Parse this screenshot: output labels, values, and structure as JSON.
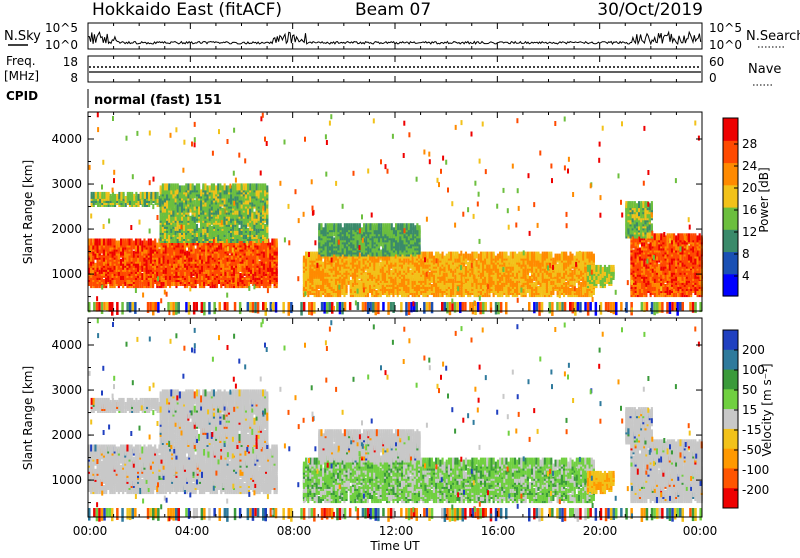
{
  "header": {
    "station": "Hokkaido East (fitACF)",
    "beam": "Beam 07",
    "date": "30/Oct/2019"
  },
  "panels": {
    "nsky": {
      "left_label": "N.Sky",
      "left_ticks": [
        "10^5",
        "10^0"
      ],
      "right_ticks": [
        "10^5",
        "10^0"
      ],
      "right_label": "N.Search"
    },
    "freq": {
      "left_label_1": "Freq.",
      "left_label_2": "[MHz]",
      "left_ticks": [
        "18",
        "8"
      ],
      "right_ticks": [
        "60",
        "0"
      ],
      "right_label": "Nave"
    },
    "cpid": {
      "label": "CPID",
      "value": "normal (fast) 151"
    },
    "power": {
      "ylabel": "Slant Range [km]",
      "yticks": [
        "4000",
        "3000",
        "2000",
        "1000"
      ],
      "colorbar_label": "Power [dB]",
      "colorbar_ticks": [
        "28",
        "24",
        "20",
        "16",
        "12",
        "8",
        "4"
      ]
    },
    "velocity": {
      "ylabel": "Slant Range [km]",
      "yticks": [
        "4000",
        "3000",
        "2000",
        "1000"
      ],
      "colorbar_label": "Velocity [m s⁻¹]",
      "colorbar_ticks": [
        "200",
        "100",
        "50",
        "15",
        "-15",
        "-50",
        "-100",
        "-200"
      ]
    }
  },
  "xaxis": {
    "label": "Time UT",
    "ticks": [
      "00:00",
      "04:00",
      "08:00",
      "12:00",
      "16:00",
      "20:00",
      "00:00"
    ]
  },
  "chart_data": {
    "type": "heatmap",
    "x_range_hours": [
      0,
      24
    ],
    "y_range_km": [
      180,
      4600
    ],
    "power_scale": {
      "colors": [
        "#0000ff",
        "#1a50b4",
        "#3a8a6a",
        "#6cbf3e",
        "#f2c21a",
        "#ff8a00",
        "#ff4a00",
        "#ee0000"
      ],
      "bins_db": [
        0,
        6,
        10,
        14,
        18,
        22,
        26,
        30
      ]
    },
    "velocity_scale": {
      "colors": [
        "#2040c0",
        "#2f7a9c",
        "#3a9a3a",
        "#70d040",
        "#c8c8c8",
        "#f2c21a",
        "#ff9900",
        "#ff5500",
        "#ee0000"
      ]
    },
    "echo_regions": [
      {
        "t0": 0.0,
        "t1": 7.4,
        "r0": 800,
        "r1": 1750,
        "power_db": 28,
        "velocity": "near zero"
      },
      {
        "t0": 0.1,
        "t1": 3.0,
        "r0": 2600,
        "r1": 2800,
        "power_db": 16,
        "velocity": "near zero"
      },
      {
        "t0": 2.8,
        "t1": 7.0,
        "r0": 1800,
        "r1": 3000,
        "power_db": 16,
        "velocity": "near zero"
      },
      {
        "t0": 8.4,
        "t1": 19.8,
        "r0": 600,
        "r1": 1500,
        "power_db": 22,
        "velocity": "positive 15-50"
      },
      {
        "t0": 9.0,
        "t1": 13.0,
        "r0": 1500,
        "r1": 2100,
        "power_db": 14,
        "velocity": "near zero"
      },
      {
        "t0": 19.5,
        "t1": 20.5,
        "r0": 800,
        "r1": 1200,
        "power_db": 18,
        "velocity": "negative -15 to -50"
      },
      {
        "t0": 21.2,
        "t1": 24.0,
        "r0": 600,
        "r1": 1900,
        "power_db": 28,
        "velocity": "near zero"
      },
      {
        "t0": 21.0,
        "t1": 22.0,
        "r0": 1900,
        "r1": 2600,
        "power_db": 16,
        "velocity": "near zero"
      }
    ],
    "title": "Hokkaido East (fitACF)",
    "xlabel": "Time UT",
    "ylabel": "Slant Range [km]"
  }
}
